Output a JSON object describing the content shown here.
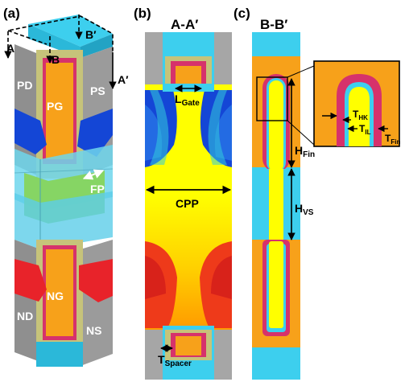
{
  "panel_a": {
    "label": "(a)",
    "cut_labels": {
      "a": "A",
      "b": "B",
      "b_prime": "B′",
      "a_prime": "A′"
    },
    "regions": {
      "pd": "PD",
      "ps": "PS",
      "pg": "PG",
      "fp": "FP",
      "ng": "NG",
      "nd": "ND",
      "ns": "NS"
    }
  },
  "panel_b": {
    "label": "(b)",
    "title": "A-A′",
    "l_gate": {
      "main": "L",
      "sub": "Gate"
    },
    "cpp": "CPP",
    "t_spacer": {
      "main": "T",
      "sub": "Spacer"
    }
  },
  "panel_c": {
    "label": "(c)",
    "title": "B-B′",
    "h_fin": {
      "main": "H",
      "sub": "Fin"
    },
    "h_vs": {
      "main": "H",
      "sub": "VS"
    },
    "t_hk": {
      "main": "T",
      "sub": "HK"
    },
    "t_il": {
      "main": "T",
      "sub": "IL"
    },
    "t_fin": {
      "main": "T",
      "sub": "Fin"
    }
  },
  "colors": {
    "cyan": "#3dcfee",
    "orange": "#f7a11a",
    "yellow": "#ffff00",
    "red": "#e8232a",
    "blue": "#1446d6",
    "magenta": "#d6326b",
    "gray": "#a6a6a6",
    "olive": "#c6c37a",
    "green": "#86d454"
  }
}
